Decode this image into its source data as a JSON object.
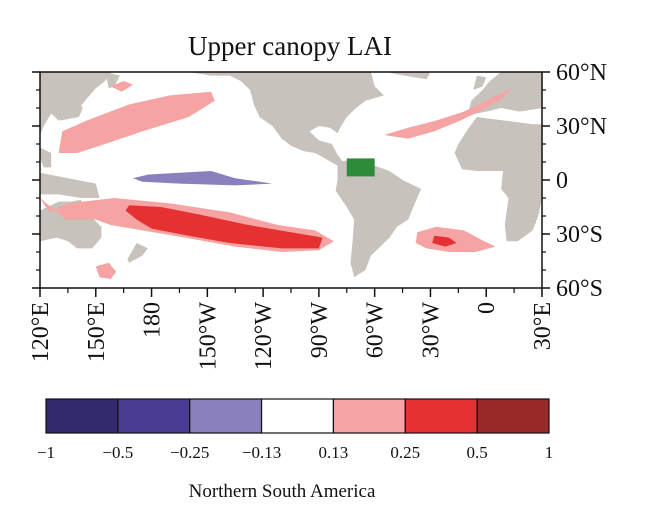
{
  "chart_data": {
    "type": "heatmap",
    "title": "Upper canopy LAI",
    "xlabel": "",
    "ylabel": "",
    "x_ticks": [
      "120°E",
      "150°E",
      "180",
      "150°W",
      "120°W",
      "90°W",
      "60°W",
      "30°W",
      "0",
      "30°E"
    ],
    "x_tick_values": [
      120,
      150,
      180,
      210,
      240,
      270,
      300,
      330,
      360,
      390
    ],
    "y_ticks": [
      "60°N",
      "30°N",
      "0",
      "30°S",
      "60°S"
    ],
    "y_tick_values": [
      60,
      30,
      0,
      -30,
      -60
    ],
    "xlim": [
      120,
      390
    ],
    "ylim": [
      -60,
      60
    ],
    "colorbar": {
      "ticks": [
        "−1",
        "−0.5",
        "−0.25",
        "−0.13",
        "0.13",
        "0.25",
        "0.5",
        "1"
      ],
      "colors": [
        "#332a6e",
        "#4a3c93",
        "#8a80bd",
        "#ffffff",
        "#f5a3a3",
        "#e53131",
        "#9a2a27"
      ],
      "label": "Northern South America"
    },
    "forcing_region": {
      "lon": [
        285,
        300
      ],
      "lat": [
        2,
        12
      ],
      "color": "#2e8b3a"
    },
    "land_color": "#c8c2bc",
    "anomalies": [
      {
        "level": "0.13 to 0.25",
        "color": "#f5a3a3",
        "polygon": [
          [
            132,
            27
          ],
          [
            145,
            33
          ],
          [
            168,
            42
          ],
          [
            190,
            47
          ],
          [
            212,
            49
          ],
          [
            214,
            44
          ],
          [
            200,
            35
          ],
          [
            175,
            27
          ],
          [
            155,
            20
          ],
          [
            140,
            15
          ],
          [
            130,
            15
          ]
        ]
      },
      {
        "level": "0.13 to 0.25",
        "color": "#f5a3a3",
        "polygon": [
          [
            158,
            52
          ],
          [
            165,
            55
          ],
          [
            170,
            53
          ],
          [
            164,
            49
          ]
        ]
      },
      {
        "level": "−0.25 to −0.13",
        "color": "#8a80bd",
        "polygon": [
          [
            170,
            1
          ],
          [
            178,
            3
          ],
          [
            195,
            4
          ],
          [
            212,
            5
          ],
          [
            225,
            1
          ],
          [
            245,
            -2
          ],
          [
            225,
            -3
          ],
          [
            195,
            -2
          ],
          [
            175,
            -1
          ]
        ]
      },
      {
        "level": "0.13 to 0.25",
        "color": "#f5a3a3",
        "polygon": [
          [
            120,
            -10
          ],
          [
            125,
            -18
          ],
          [
            135,
            -13
          ],
          [
            160,
            -10
          ],
          [
            190,
            -13
          ],
          [
            222,
            -18
          ],
          [
            248,
            -25
          ],
          [
            268,
            -28
          ],
          [
            278,
            -34
          ],
          [
            270,
            -39
          ],
          [
            250,
            -40
          ],
          [
            225,
            -37
          ],
          [
            198,
            -32
          ],
          [
            175,
            -28
          ],
          [
            158,
            -25
          ],
          [
            150,
            -22
          ],
          [
            134,
            -22
          ]
        ]
      },
      {
        "level": "0.25 to 0.5",
        "color": "#e53131",
        "polygon": [
          [
            168,
            -14
          ],
          [
            185,
            -15
          ],
          [
            205,
            -19
          ],
          [
            232,
            -25
          ],
          [
            255,
            -29
          ],
          [
            272,
            -32
          ],
          [
            270,
            -38
          ],
          [
            250,
            -38
          ],
          [
            222,
            -35
          ],
          [
            200,
            -31
          ],
          [
            180,
            -27
          ],
          [
            172,
            -22
          ],
          [
            166,
            -17
          ]
        ]
      },
      {
        "level": "0.13 to 0.25",
        "color": "#f5a3a3",
        "polygon": [
          [
            150,
            -48
          ],
          [
            157,
            -46
          ],
          [
            161,
            -51
          ],
          [
            158,
            -55
          ],
          [
            152,
            -54
          ]
        ]
      },
      {
        "level": "0.13 to 0.25",
        "color": "#f5a3a3",
        "polygon": [
          [
            305,
            25
          ],
          [
            318,
            29
          ],
          [
            333,
            33
          ],
          [
            348,
            38
          ],
          [
            360,
            44
          ],
          [
            368,
            48
          ],
          [
            374,
            51
          ],
          [
            368,
            45
          ],
          [
            358,
            39
          ],
          [
            346,
            33
          ],
          [
            332,
            27
          ],
          [
            318,
            23
          ]
        ]
      },
      {
        "level": "0.13 to 0.25",
        "color": "#f5a3a3",
        "polygon": [
          [
            323,
            -29
          ],
          [
            333,
            -26
          ],
          [
            348,
            -28
          ],
          [
            357,
            -33
          ],
          [
            365,
            -37
          ],
          [
            354,
            -40
          ],
          [
            340,
            -40
          ],
          [
            328,
            -38
          ],
          [
            322,
            -35
          ]
        ]
      },
      {
        "level": "0.25 to 0.5",
        "color": "#e53131",
        "polygon": [
          [
            332,
            -31
          ],
          [
            340,
            -32
          ],
          [
            344,
            -35
          ],
          [
            338,
            -37
          ],
          [
            331,
            -35
          ]
        ]
      }
    ]
  }
}
